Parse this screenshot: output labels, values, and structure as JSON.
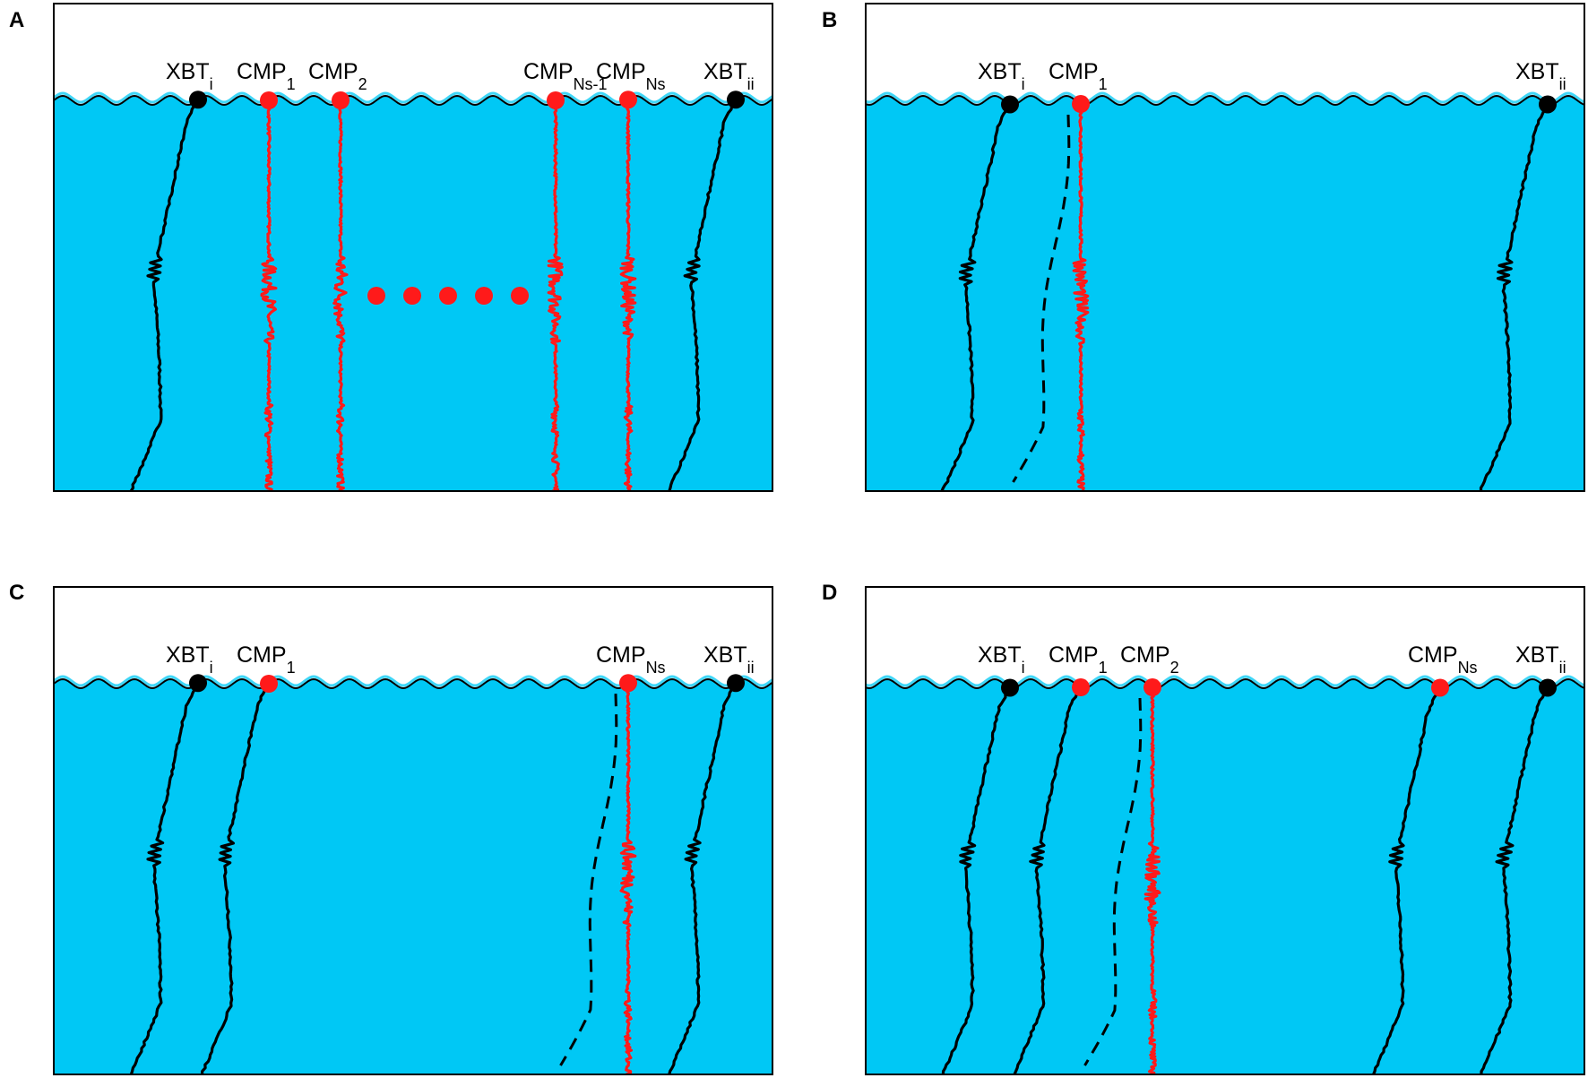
{
  "colors": {
    "ocean": "#00C8F5",
    "sky": "#FFFFFF",
    "cmp": "#FF1A1A",
    "xbt": "#000000",
    "wave_highlight": "#3FD6F7"
  },
  "panels": [
    {
      "id": "A",
      "letter": "A",
      "probes": [
        {
          "kind": "xbt",
          "base": "XBT",
          "sub": "i",
          "profile": "solid"
        },
        {
          "kind": "cmp",
          "base": "CMP",
          "sub": "1",
          "profile": "noisy"
        },
        {
          "kind": "cmp",
          "base": "CMP",
          "sub": "2",
          "profile": "noisy"
        },
        {
          "kind": "cmp",
          "base": "CMP",
          "sub": "Ns-1",
          "profile": "noisy"
        },
        {
          "kind": "cmp",
          "base": "CMP",
          "sub": "Ns",
          "profile": "noisy"
        },
        {
          "kind": "xbt",
          "base": "XBT",
          "sub": "ii",
          "profile": "solid"
        }
      ],
      "ellipsis": true
    },
    {
      "id": "B",
      "letter": "B",
      "probes": [
        {
          "kind": "xbt",
          "base": "XBT",
          "sub": "i",
          "profile": "solid"
        },
        {
          "kind": "cmp",
          "base": "CMP",
          "sub": "1",
          "profile": "noisy"
        },
        {
          "kind": "xbt",
          "base": "XBT",
          "sub": "ii",
          "profile": "solid"
        }
      ],
      "ellipsis": false
    },
    {
      "id": "C",
      "letter": "C",
      "probes": [
        {
          "kind": "xbt",
          "base": "XBT",
          "sub": "i",
          "profile": "solid"
        },
        {
          "kind": "cmp",
          "base": "CMP",
          "sub": "1",
          "profile": "solid"
        },
        {
          "kind": "cmp",
          "base": "CMP",
          "sub": "Ns",
          "profile": "noisy"
        },
        {
          "kind": "xbt",
          "base": "XBT",
          "sub": "ii",
          "profile": "solid"
        }
      ],
      "ellipsis": false
    },
    {
      "id": "D",
      "letter": "D",
      "probes": [
        {
          "kind": "xbt",
          "base": "XBT",
          "sub": "i",
          "profile": "solid"
        },
        {
          "kind": "cmp",
          "base": "CMP",
          "sub": "1",
          "profile": "solid"
        },
        {
          "kind": "cmp",
          "base": "CMP",
          "sub": "2",
          "profile": "noisy"
        },
        {
          "kind": "cmp",
          "base": "CMP",
          "sub": "Ns",
          "profile": "solid"
        },
        {
          "kind": "xbt",
          "base": "XBT",
          "sub": "ii",
          "profile": "solid"
        }
      ],
      "ellipsis": false
    }
  ]
}
